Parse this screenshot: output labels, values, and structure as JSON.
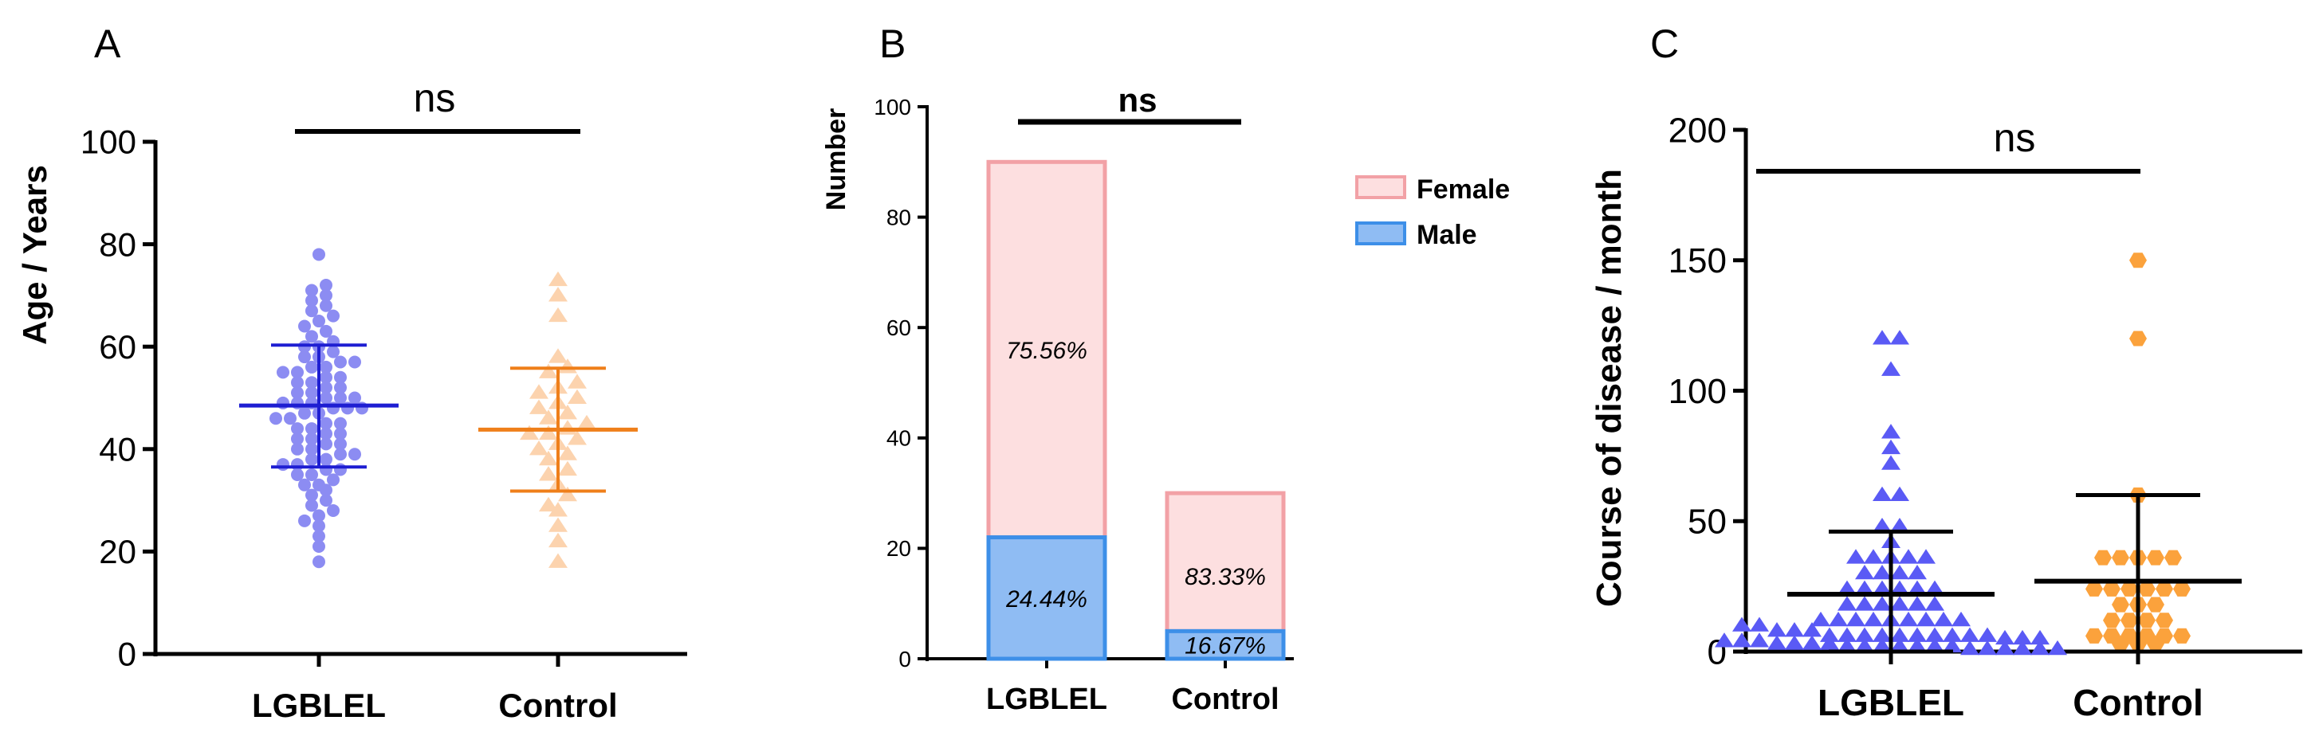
{
  "colors": {
    "a_lgblel": "#8C8CF2",
    "a_lgblel_line": "#1E1ED2",
    "a_control": "#FCD3AE",
    "a_control_line": "#EF7F1A",
    "b_female_fill": "#FDDFE0",
    "b_female_stroke": "#F2A1A6",
    "b_male_fill": "#8FBCF3",
    "b_male_stroke": "#3D8FE8",
    "c_lgblel": "#5A5AF5",
    "c_control": "#FBA23C",
    "axis": "#000000"
  },
  "chart_data": [
    {
      "panel": "A",
      "type": "scatter",
      "title": "",
      "xlabel": "",
      "ylabel": "Age / Years",
      "ylim": [
        0,
        100
      ],
      "yticks": [
        0,
        20,
        40,
        60,
        80,
        100
      ],
      "categories": [
        "LGBLEL",
        "Control"
      ],
      "significance": "ns",
      "series": [
        {
          "name": "LGBLEL",
          "marker": "circle",
          "mean": 48.5,
          "sd_low": 36.5,
          "sd_high": 60.3,
          "values": [
            18,
            21,
            23,
            25,
            26,
            27,
            28,
            29,
            30,
            31,
            32,
            33,
            33,
            34,
            35,
            35,
            36,
            36,
            37,
            37,
            38,
            38,
            39,
            39,
            40,
            40,
            41,
            41,
            42,
            42,
            43,
            43,
            44,
            44,
            45,
            45,
            46,
            46,
            47,
            47,
            48,
            48,
            48,
            49,
            49,
            49,
            50,
            50,
            50,
            51,
            51,
            52,
            52,
            53,
            53,
            54,
            54,
            55,
            55,
            56,
            56,
            57,
            57,
            58,
            58,
            59,
            60,
            60,
            61,
            62,
            63,
            64,
            65,
            66,
            67,
            68,
            69,
            70,
            71,
            72,
            78
          ]
        },
        {
          "name": "Control",
          "marker": "triangle",
          "mean": 43.8,
          "sd_low": 31.8,
          "sd_high": 55.8,
          "values": [
            18,
            22,
            25,
            28,
            29,
            31,
            33,
            35,
            36,
            38,
            39,
            40,
            41,
            42,
            43,
            43,
            44,
            45,
            46,
            47,
            48,
            49,
            50,
            51,
            52,
            53,
            55,
            56,
            58,
            66,
            70,
            73
          ]
        }
      ]
    },
    {
      "panel": "B",
      "type": "bar",
      "stacked": true,
      "title": "",
      "xlabel": "",
      "ylabel": "Number",
      "ylim": [
        0,
        100
      ],
      "yticks": [
        0,
        20,
        40,
        60,
        80,
        100
      ],
      "categories": [
        "LGBLEL",
        "Control"
      ],
      "significance": "ns",
      "legend_position": "top-right",
      "series": [
        {
          "name": "Male",
          "values": [
            22,
            5
          ],
          "labels": [
            "24.44%",
            "16.67%"
          ]
        },
        {
          "name": "Female",
          "values": [
            68,
            25
          ],
          "labels": [
            "75.56%",
            "83.33%"
          ]
        }
      ]
    },
    {
      "panel": "C",
      "type": "scatter",
      "title": "",
      "xlabel": "",
      "ylabel": "Course of disease / month",
      "ylim": [
        0,
        200
      ],
      "yticks": [
        0,
        50,
        100,
        150,
        200
      ],
      "categories": [
        "LGBLEL",
        "Control"
      ],
      "significance": "ns",
      "series": [
        {
          "name": "LGBLEL",
          "marker": "triangle",
          "mean": 22,
          "sd_low": 0,
          "sd_high": 46,
          "values": [
            120,
            120,
            108,
            84,
            78,
            72,
            60,
            60,
            48,
            48,
            42,
            36,
            36,
            36,
            36,
            36,
            30,
            30,
            30,
            30,
            24,
            24,
            24,
            24,
            24,
            24,
            18,
            18,
            18,
            18,
            18,
            18,
            12,
            12,
            12,
            12,
            12,
            12,
            12,
            12,
            12,
            10,
            10,
            8,
            8,
            8,
            6,
            6,
            6,
            6,
            6,
            6,
            6,
            6,
            6,
            6,
            5,
            5,
            5,
            4,
            4,
            4,
            3,
            3,
            3,
            3,
            2,
            2,
            2,
            2,
            2,
            2,
            2,
            1,
            1,
            1,
            1,
            1,
            1
          ]
        },
        {
          "name": "Control",
          "marker": "hexagon",
          "mean": 27,
          "sd_low": 0,
          "sd_high": 60,
          "values": [
            150,
            120,
            60,
            36,
            36,
            36,
            36,
            36,
            24,
            24,
            24,
            24,
            24,
            24,
            18,
            18,
            18,
            12,
            12,
            12,
            12,
            6,
            6,
            6,
            6,
            6,
            6,
            3,
            3,
            3
          ]
        }
      ]
    }
  ]
}
